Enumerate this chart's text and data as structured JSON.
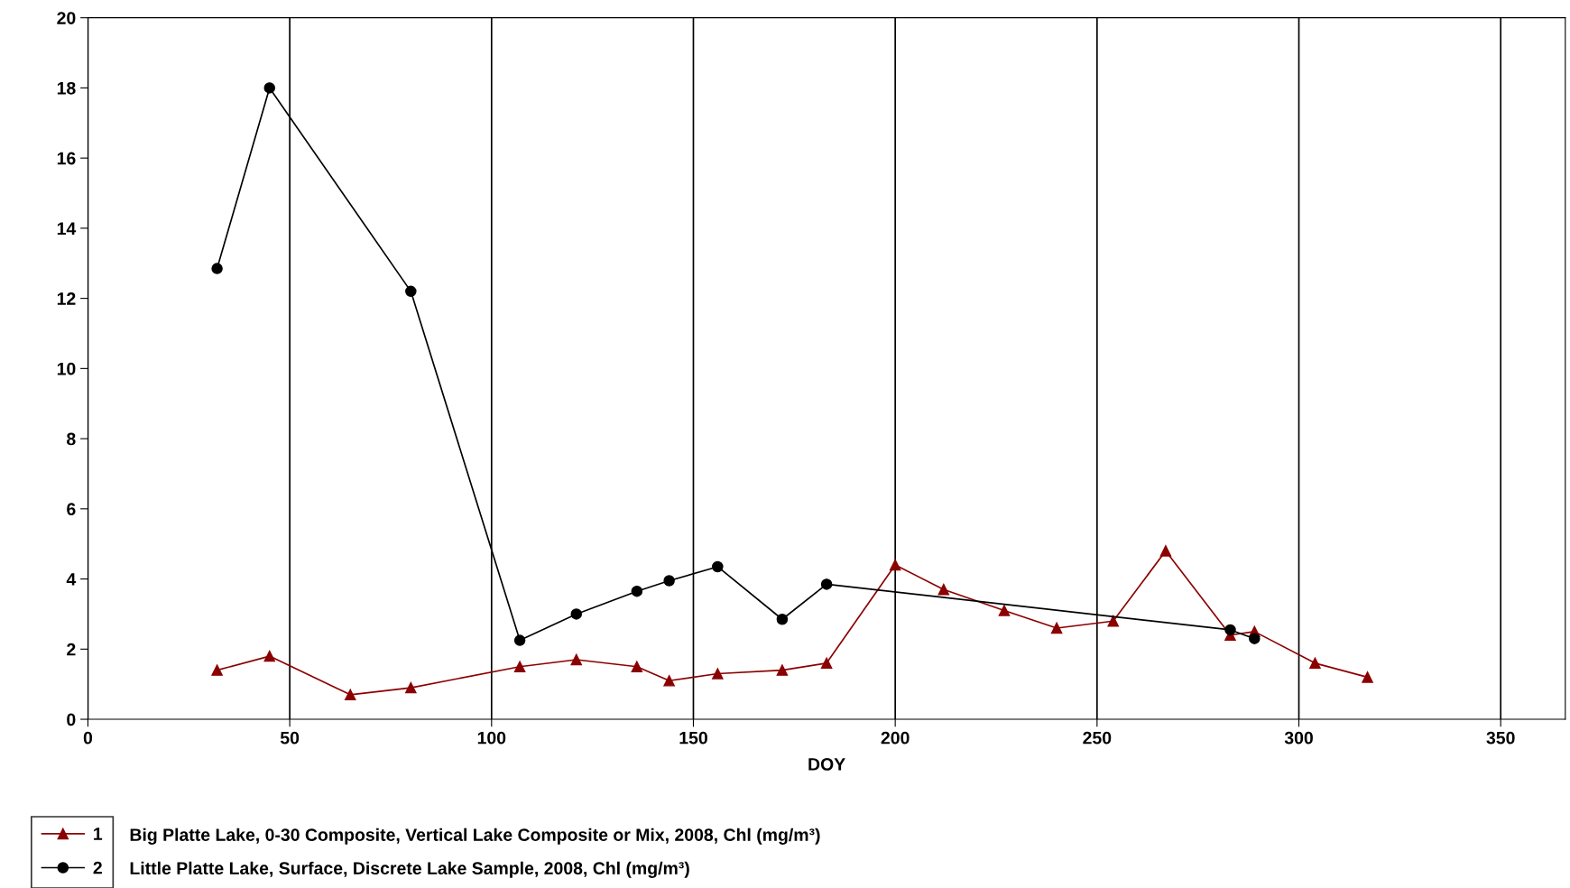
{
  "chart_data": {
    "type": "line",
    "xlabel": "DOY",
    "xlim": [
      0,
      366
    ],
    "xticks": [
      0,
      50,
      100,
      150,
      200,
      250,
      300,
      350
    ],
    "ylim": [
      0,
      20
    ],
    "yticks": [
      0,
      2,
      4,
      6,
      8,
      10,
      12,
      14,
      16,
      18,
      20
    ],
    "grid": "x",
    "legend": "bottom left",
    "line_style": "solid",
    "annotations": [
      "Big Platte Lake, 0-30 Composite, Vertical Lake Composite or Mix, 2008, Chl (mg/m³)",
      "Little Platte Lake, Surface, Discrete Lake Sample, 2008, Chl (mg/m³)"
    ],
    "series": [
      {
        "name": "1",
        "color": "#8b0000",
        "marker": "triangle",
        "x": [
          32,
          45,
          65,
          80,
          107,
          121,
          136,
          144,
          156,
          172,
          183,
          200,
          212,
          227,
          240,
          254,
          267,
          283,
          289,
          304,
          317
        ],
        "values": [
          1.4,
          1.8,
          0.7,
          0.9,
          1.5,
          1.7,
          1.5,
          1.1,
          1.3,
          1.4,
          1.6,
          4.4,
          3.7,
          3.1,
          2.6,
          2.8,
          4.8,
          2.4,
          2.5,
          1.6,
          1.2
        ]
      },
      {
        "name": "2",
        "color": "#000000",
        "marker": "circle",
        "x": [
          32,
          45,
          80,
          107,
          121,
          136,
          144,
          156,
          172,
          183,
          283,
          289
        ],
        "values": [
          12.85,
          18.0,
          12.2,
          2.25,
          3.0,
          3.65,
          3.95,
          4.35,
          2.85,
          3.85,
          2.55,
          2.3
        ]
      }
    ]
  }
}
